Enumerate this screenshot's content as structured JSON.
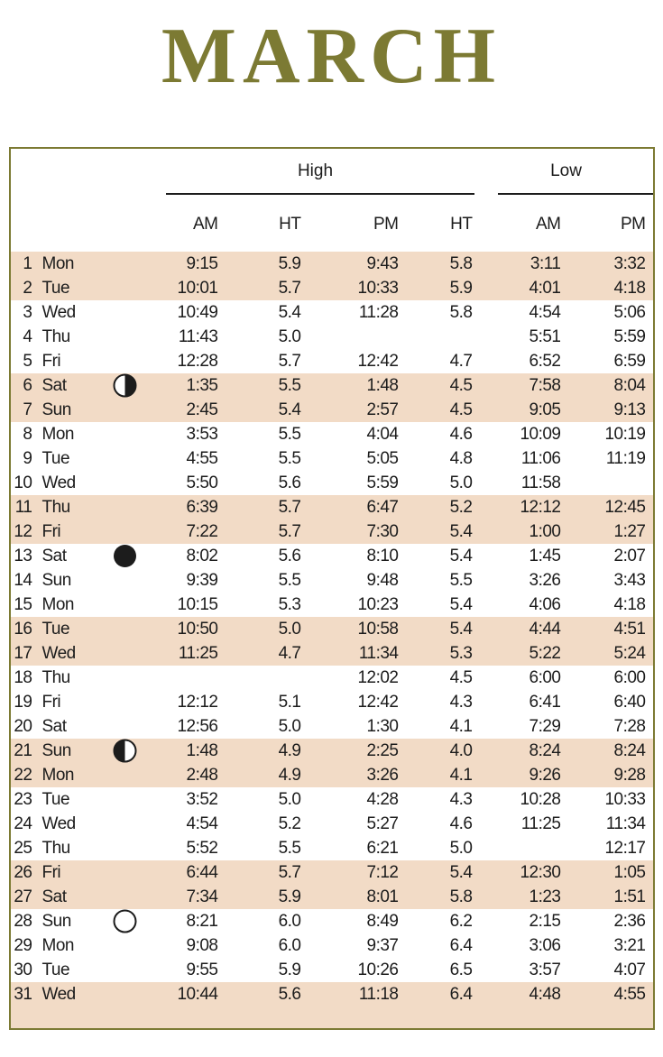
{
  "title": "MARCH",
  "colors": {
    "accent_olive": "#7c7a33",
    "row_shade": "#f2dbc6",
    "text": "#1c1c1c"
  },
  "table": {
    "group_high": "High",
    "group_low": "Low",
    "columns": [
      "AM",
      "HT",
      "PM",
      "HT",
      "AM",
      "PM"
    ],
    "rows": [
      {
        "day": "1",
        "weekday": "Mon",
        "moon": "",
        "high_am": "9:15",
        "high_am_ht": "5.9",
        "high_pm": "9:43",
        "high_pm_ht": "5.8",
        "low_am": "3:11",
        "low_pm": "3:32",
        "shaded": true
      },
      {
        "day": "2",
        "weekday": "Tue",
        "moon": "",
        "high_am": "10:01",
        "high_am_ht": "5.7",
        "high_pm": "10:33",
        "high_pm_ht": "5.9",
        "low_am": "4:01",
        "low_pm": "4:18",
        "shaded": true
      },
      {
        "day": "3",
        "weekday": "Wed",
        "moon": "",
        "high_am": "10:49",
        "high_am_ht": "5.4",
        "high_pm": "11:28",
        "high_pm_ht": "5.8",
        "low_am": "4:54",
        "low_pm": "5:06",
        "shaded": false
      },
      {
        "day": "4",
        "weekday": "Thu",
        "moon": "",
        "high_am": "11:43",
        "high_am_ht": "5.0",
        "high_pm": "",
        "high_pm_ht": "",
        "low_am": "5:51",
        "low_pm": "5:59",
        "shaded": false
      },
      {
        "day": "5",
        "weekday": "Fri",
        "moon": "",
        "high_am": "12:28",
        "high_am_ht": "5.7",
        "high_pm": "12:42",
        "high_pm_ht": "4.7",
        "low_am": "6:52",
        "low_pm": "6:59",
        "shaded": false
      },
      {
        "day": "6",
        "weekday": "Sat",
        "moon": "first-quarter",
        "high_am": "1:35",
        "high_am_ht": "5.5",
        "high_pm": "1:48",
        "high_pm_ht": "4.5",
        "low_am": "7:58",
        "low_pm": "8:04",
        "shaded": true
      },
      {
        "day": "7",
        "weekday": "Sun",
        "moon": "",
        "high_am": "2:45",
        "high_am_ht": "5.4",
        "high_pm": "2:57",
        "high_pm_ht": "4.5",
        "low_am": "9:05",
        "low_pm": "9:13",
        "shaded": true
      },
      {
        "day": "8",
        "weekday": "Mon",
        "moon": "",
        "high_am": "3:53",
        "high_am_ht": "5.5",
        "high_pm": "4:04",
        "high_pm_ht": "4.6",
        "low_am": "10:09",
        "low_pm": "10:19",
        "shaded": false
      },
      {
        "day": "9",
        "weekday": "Tue",
        "moon": "",
        "high_am": "4:55",
        "high_am_ht": "5.5",
        "high_pm": "5:05",
        "high_pm_ht": "4.8",
        "low_am": "11:06",
        "low_pm": "11:19",
        "shaded": false
      },
      {
        "day": "10",
        "weekday": "Wed",
        "moon": "",
        "high_am": "5:50",
        "high_am_ht": "5.6",
        "high_pm": "5:59",
        "high_pm_ht": "5.0",
        "low_am": "11:58",
        "low_pm": "",
        "shaded": false
      },
      {
        "day": "11",
        "weekday": "Thu",
        "moon": "",
        "high_am": "6:39",
        "high_am_ht": "5.7",
        "high_pm": "6:47",
        "high_pm_ht": "5.2",
        "low_am": "12:12",
        "low_pm": "12:45",
        "shaded": true
      },
      {
        "day": "12",
        "weekday": "Fri",
        "moon": "",
        "high_am": "7:22",
        "high_am_ht": "5.7",
        "high_pm": "7:30",
        "high_pm_ht": "5.4",
        "low_am": "1:00",
        "low_pm": "1:27",
        "shaded": true
      },
      {
        "day": "13",
        "weekday": "Sat",
        "moon": "new",
        "high_am": "8:02",
        "high_am_ht": "5.6",
        "high_pm": "8:10",
        "high_pm_ht": "5.4",
        "low_am": "1:45",
        "low_pm": "2:07",
        "shaded": false
      },
      {
        "day": "14",
        "weekday": "Sun",
        "moon": "",
        "high_am": "9:39",
        "high_am_ht": "5.5",
        "high_pm": "9:48",
        "high_pm_ht": "5.5",
        "low_am": "3:26",
        "low_pm": "3:43",
        "shaded": false
      },
      {
        "day": "15",
        "weekday": "Mon",
        "moon": "",
        "high_am": "10:15",
        "high_am_ht": "5.3",
        "high_pm": "10:23",
        "high_pm_ht": "5.4",
        "low_am": "4:06",
        "low_pm": "4:18",
        "shaded": false
      },
      {
        "day": "16",
        "weekday": "Tue",
        "moon": "",
        "high_am": "10:50",
        "high_am_ht": "5.0",
        "high_pm": "10:58",
        "high_pm_ht": "5.4",
        "low_am": "4:44",
        "low_pm": "4:51",
        "shaded": true
      },
      {
        "day": "17",
        "weekday": "Wed",
        "moon": "",
        "high_am": "11:25",
        "high_am_ht": "4.7",
        "high_pm": "11:34",
        "high_pm_ht": "5.3",
        "low_am": "5:22",
        "low_pm": "5:24",
        "shaded": true
      },
      {
        "day": "18",
        "weekday": "Thu",
        "moon": "",
        "high_am": "",
        "high_am_ht": "",
        "high_pm": "12:02",
        "high_pm_ht": "4.5",
        "low_am": "6:00",
        "low_pm": "6:00",
        "shaded": false
      },
      {
        "day": "19",
        "weekday": "Fri",
        "moon": "",
        "high_am": "12:12",
        "high_am_ht": "5.1",
        "high_pm": "12:42",
        "high_pm_ht": "4.3",
        "low_am": "6:41",
        "low_pm": "6:40",
        "shaded": false
      },
      {
        "day": "20",
        "weekday": "Sat",
        "moon": "",
        "high_am": "12:56",
        "high_am_ht": "5.0",
        "high_pm": "1:30",
        "high_pm_ht": "4.1",
        "low_am": "7:29",
        "low_pm": "7:28",
        "shaded": false
      },
      {
        "day": "21",
        "weekday": "Sun",
        "moon": "last-quarter",
        "high_am": "1:48",
        "high_am_ht": "4.9",
        "high_pm": "2:25",
        "high_pm_ht": "4.0",
        "low_am": "8:24",
        "low_pm": "8:24",
        "shaded": true
      },
      {
        "day": "22",
        "weekday": "Mon",
        "moon": "",
        "high_am": "2:48",
        "high_am_ht": "4.9",
        "high_pm": "3:26",
        "high_pm_ht": "4.1",
        "low_am": "9:26",
        "low_pm": "9:28",
        "shaded": true
      },
      {
        "day": "23",
        "weekday": "Tue",
        "moon": "",
        "high_am": "3:52",
        "high_am_ht": "5.0",
        "high_pm": "4:28",
        "high_pm_ht": "4.3",
        "low_am": "10:28",
        "low_pm": "10:33",
        "shaded": false
      },
      {
        "day": "24",
        "weekday": "Wed",
        "moon": "",
        "high_am": "4:54",
        "high_am_ht": "5.2",
        "high_pm": "5:27",
        "high_pm_ht": "4.6",
        "low_am": "11:25",
        "low_pm": "11:34",
        "shaded": false
      },
      {
        "day": "25",
        "weekday": "Thu",
        "moon": "",
        "high_am": "5:52",
        "high_am_ht": "5.5",
        "high_pm": "6:21",
        "high_pm_ht": "5.0",
        "low_am": "",
        "low_pm": "12:17",
        "shaded": false
      },
      {
        "day": "26",
        "weekday": "Fri",
        "moon": "",
        "high_am": "6:44",
        "high_am_ht": "5.7",
        "high_pm": "7:12",
        "high_pm_ht": "5.4",
        "low_am": "12:30",
        "low_pm": "1:05",
        "shaded": true
      },
      {
        "day": "27",
        "weekday": "Sat",
        "moon": "",
        "high_am": "7:34",
        "high_am_ht": "5.9",
        "high_pm": "8:01",
        "high_pm_ht": "5.8",
        "low_am": "1:23",
        "low_pm": "1:51",
        "shaded": true
      },
      {
        "day": "28",
        "weekday": "Sun",
        "moon": "full",
        "high_am": "8:21",
        "high_am_ht": "6.0",
        "high_pm": "8:49",
        "high_pm_ht": "6.2",
        "low_am": "2:15",
        "low_pm": "2:36",
        "shaded": false
      },
      {
        "day": "29",
        "weekday": "Mon",
        "moon": "",
        "high_am": "9:08",
        "high_am_ht": "6.0",
        "high_pm": "9:37",
        "high_pm_ht": "6.4",
        "low_am": "3:06",
        "low_pm": "3:21",
        "shaded": false
      },
      {
        "day": "30",
        "weekday": "Tue",
        "moon": "",
        "high_am": "9:55",
        "high_am_ht": "5.9",
        "high_pm": "10:26",
        "high_pm_ht": "6.5",
        "low_am": "3:57",
        "low_pm": "4:07",
        "shaded": false
      },
      {
        "day": "31",
        "weekday": "Wed",
        "moon": "",
        "high_am": "10:44",
        "high_am_ht": "5.6",
        "high_pm": "11:18",
        "high_pm_ht": "6.4",
        "low_am": "4:48",
        "low_pm": "4:55",
        "shaded": true
      }
    ]
  }
}
